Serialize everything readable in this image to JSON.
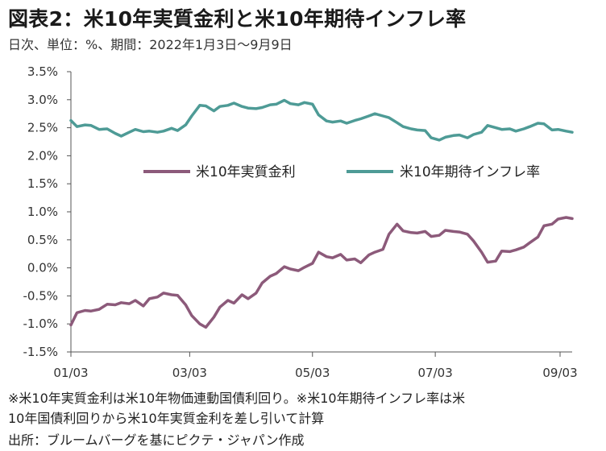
{
  "header": {
    "title": "図表2：米10年実質金利と米10年期待インフレ率",
    "subtitle": "日次、単位：%、期間：2022年1月3日～9月9日"
  },
  "notes": [
    "※米10年実質金利は米10年物価連動国債利回り。※米10年期待インフレ率は米",
    "10年国債利回りから米10年実質金利を差し引いて計算",
    "出所：ブルームバーグを基にピクテ・ジャパン作成"
  ],
  "chart_data": {
    "type": "line",
    "title": "",
    "xlabel": "",
    "ylabel": "",
    "ylim": [
      -1.5,
      3.5
    ],
    "yticks": [
      -1.5,
      -1.0,
      -0.5,
      0.0,
      0.5,
      1.0,
      1.5,
      2.0,
      2.5,
      3.0,
      3.5
    ],
    "ytick_labels": [
      "-1.5%",
      "-1.0%",
      "-0.5%",
      "0.0%",
      "0.5%",
      "1.0%",
      "1.5%",
      "2.0%",
      "2.5%",
      "3.0%",
      "3.5%"
    ],
    "xlim": [
      "2022-01-03",
      "2022-09-09"
    ],
    "xticks": [
      "2022-01-03",
      "2022-03-03",
      "2022-05-03",
      "2022-07-03",
      "2022-09-03"
    ],
    "xtick_labels": [
      "01/03",
      "03/03",
      "05/03",
      "07/03",
      "09/03"
    ],
    "grid": false,
    "legend": "upper-middle",
    "series": [
      {
        "name": "米10年実質金利",
        "color": "#8c5a7a",
        "points": [
          [
            "2022-01-03",
            -1.02
          ],
          [
            "2022-01-06",
            -0.8
          ],
          [
            "2022-01-10",
            -0.76
          ],
          [
            "2022-01-13",
            -0.77
          ],
          [
            "2022-01-17",
            -0.74
          ],
          [
            "2022-01-21",
            -0.65
          ],
          [
            "2022-01-25",
            -0.66
          ],
          [
            "2022-01-28",
            -0.62
          ],
          [
            "2022-02-01",
            -0.64
          ],
          [
            "2022-02-04",
            -0.58
          ],
          [
            "2022-02-08",
            -0.68
          ],
          [
            "2022-02-11",
            -0.55
          ],
          [
            "2022-02-15",
            -0.52
          ],
          [
            "2022-02-18",
            -0.45
          ],
          [
            "2022-02-22",
            -0.48
          ],
          [
            "2022-02-25",
            -0.49
          ],
          [
            "2022-03-01",
            -0.66
          ],
          [
            "2022-03-04",
            -0.85
          ],
          [
            "2022-03-08",
            -1.0
          ],
          [
            "2022-03-11",
            -1.06
          ],
          [
            "2022-03-15",
            -0.88
          ],
          [
            "2022-03-18",
            -0.7
          ],
          [
            "2022-03-22",
            -0.58
          ],
          [
            "2022-03-25",
            -0.63
          ],
          [
            "2022-03-29",
            -0.48
          ],
          [
            "2022-04-01",
            -0.55
          ],
          [
            "2022-04-05",
            -0.45
          ],
          [
            "2022-04-08",
            -0.27
          ],
          [
            "2022-04-12",
            -0.15
          ],
          [
            "2022-04-15",
            -0.1
          ],
          [
            "2022-04-19",
            0.02
          ],
          [
            "2022-04-22",
            -0.02
          ],
          [
            "2022-04-26",
            -0.05
          ],
          [
            "2022-04-29",
            0.01
          ],
          [
            "2022-05-03",
            0.08
          ],
          [
            "2022-05-06",
            0.28
          ],
          [
            "2022-05-10",
            0.2
          ],
          [
            "2022-05-13",
            0.18
          ],
          [
            "2022-05-17",
            0.24
          ],
          [
            "2022-05-20",
            0.14
          ],
          [
            "2022-05-24",
            0.16
          ],
          [
            "2022-05-27",
            0.09
          ],
          [
            "2022-05-31",
            0.23
          ],
          [
            "2022-06-03",
            0.28
          ],
          [
            "2022-06-07",
            0.33
          ],
          [
            "2022-06-10",
            0.6
          ],
          [
            "2022-06-14",
            0.78
          ],
          [
            "2022-06-17",
            0.66
          ],
          [
            "2022-06-21",
            0.63
          ],
          [
            "2022-06-24",
            0.62
          ],
          [
            "2022-06-28",
            0.65
          ],
          [
            "2022-07-01",
            0.56
          ],
          [
            "2022-07-05",
            0.58
          ],
          [
            "2022-07-08",
            0.67
          ],
          [
            "2022-07-12",
            0.65
          ],
          [
            "2022-07-15",
            0.64
          ],
          [
            "2022-07-19",
            0.6
          ],
          [
            "2022-07-22",
            0.48
          ],
          [
            "2022-07-26",
            0.28
          ],
          [
            "2022-07-29",
            0.1
          ],
          [
            "2022-08-02",
            0.12
          ],
          [
            "2022-08-05",
            0.3
          ],
          [
            "2022-08-09",
            0.29
          ],
          [
            "2022-08-12",
            0.32
          ],
          [
            "2022-08-16",
            0.37
          ],
          [
            "2022-08-19",
            0.45
          ],
          [
            "2022-08-23",
            0.55
          ],
          [
            "2022-08-26",
            0.75
          ],
          [
            "2022-08-30",
            0.78
          ],
          [
            "2022-09-02",
            0.87
          ],
          [
            "2022-09-06",
            0.9
          ],
          [
            "2022-09-09",
            0.88
          ]
        ]
      },
      {
        "name": "米10年期待インフレ率",
        "color": "#4e9b96",
        "points": [
          [
            "2022-01-03",
            2.63
          ],
          [
            "2022-01-06",
            2.52
          ],
          [
            "2022-01-10",
            2.55
          ],
          [
            "2022-01-13",
            2.54
          ],
          [
            "2022-01-17",
            2.47
          ],
          [
            "2022-01-21",
            2.48
          ],
          [
            "2022-01-25",
            2.4
          ],
          [
            "2022-01-28",
            2.35
          ],
          [
            "2022-02-01",
            2.42
          ],
          [
            "2022-02-04",
            2.47
          ],
          [
            "2022-02-08",
            2.43
          ],
          [
            "2022-02-11",
            2.44
          ],
          [
            "2022-02-15",
            2.42
          ],
          [
            "2022-02-18",
            2.44
          ],
          [
            "2022-02-22",
            2.49
          ],
          [
            "2022-02-25",
            2.45
          ],
          [
            "2022-03-01",
            2.55
          ],
          [
            "2022-03-04",
            2.71
          ],
          [
            "2022-03-08",
            2.9
          ],
          [
            "2022-03-11",
            2.89
          ],
          [
            "2022-03-15",
            2.8
          ],
          [
            "2022-03-18",
            2.88
          ],
          [
            "2022-03-22",
            2.9
          ],
          [
            "2022-03-25",
            2.94
          ],
          [
            "2022-03-29",
            2.88
          ],
          [
            "2022-04-01",
            2.85
          ],
          [
            "2022-04-05",
            2.84
          ],
          [
            "2022-04-08",
            2.86
          ],
          [
            "2022-04-12",
            2.91
          ],
          [
            "2022-04-15",
            2.92
          ],
          [
            "2022-04-19",
            2.99
          ],
          [
            "2022-04-22",
            2.93
          ],
          [
            "2022-04-26",
            2.91
          ],
          [
            "2022-04-29",
            2.95
          ],
          [
            "2022-05-03",
            2.92
          ],
          [
            "2022-05-06",
            2.73
          ],
          [
            "2022-05-10",
            2.62
          ],
          [
            "2022-05-13",
            2.6
          ],
          [
            "2022-05-17",
            2.62
          ],
          [
            "2022-05-20",
            2.58
          ],
          [
            "2022-05-24",
            2.63
          ],
          [
            "2022-05-27",
            2.66
          ],
          [
            "2022-05-31",
            2.71
          ],
          [
            "2022-06-03",
            2.75
          ],
          [
            "2022-06-07",
            2.71
          ],
          [
            "2022-06-10",
            2.68
          ],
          [
            "2022-06-14",
            2.59
          ],
          [
            "2022-06-17",
            2.52
          ],
          [
            "2022-06-21",
            2.48
          ],
          [
            "2022-06-24",
            2.46
          ],
          [
            "2022-06-28",
            2.45
          ],
          [
            "2022-07-01",
            2.32
          ],
          [
            "2022-07-05",
            2.28
          ],
          [
            "2022-07-08",
            2.33
          ],
          [
            "2022-07-12",
            2.36
          ],
          [
            "2022-07-15",
            2.37
          ],
          [
            "2022-07-19",
            2.32
          ],
          [
            "2022-07-22",
            2.38
          ],
          [
            "2022-07-26",
            2.42
          ],
          [
            "2022-07-29",
            2.54
          ],
          [
            "2022-08-02",
            2.5
          ],
          [
            "2022-08-05",
            2.47
          ],
          [
            "2022-08-09",
            2.48
          ],
          [
            "2022-08-12",
            2.44
          ],
          [
            "2022-08-16",
            2.48
          ],
          [
            "2022-08-19",
            2.52
          ],
          [
            "2022-08-23",
            2.58
          ],
          [
            "2022-08-26",
            2.57
          ],
          [
            "2022-08-30",
            2.46
          ],
          [
            "2022-09-02",
            2.47
          ],
          [
            "2022-09-06",
            2.44
          ],
          [
            "2022-09-09",
            2.42
          ]
        ]
      }
    ]
  }
}
